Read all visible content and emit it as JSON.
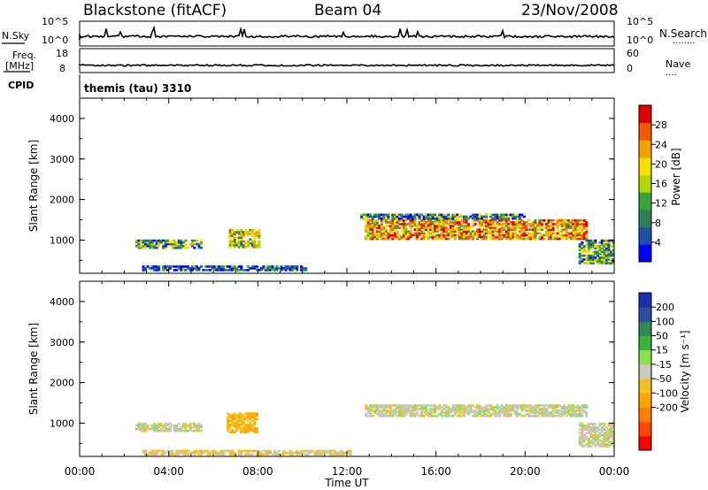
{
  "header": {
    "station": "Blackstone (fitACF)",
    "beam": "Beam 04",
    "date": "23/Nov/2008"
  },
  "top_panels": {
    "nsky_label": "N.Sky",
    "nsearch_label": "N.Search",
    "nsearch_dots": "........",
    "noise_ticks": [
      "10^5",
      "10^0"
    ],
    "freq_label_1": "Freq.",
    "freq_label_2": "[MHz]",
    "freq_ticks": [
      "18",
      "8"
    ],
    "nave_label": "Nave",
    "nave_dots": "....",
    "nave_ticks": [
      "60",
      "0"
    ],
    "cpid_label": "CPID",
    "cpid_value": "themis (tau) 3310"
  },
  "colors": {
    "power_scale": [
      "#0000ff",
      "#1f4fa8",
      "#2f7f5a",
      "#37a33a",
      "#b7d500",
      "#f5e000",
      "#f5a000",
      "#f05a00",
      "#e00000"
    ],
    "velocity_scale": [
      "#ff0000",
      "#ff4500",
      "#ff8000",
      "#ffa500",
      "#f0c420",
      "#c8c8be",
      "#8be04e",
      "#3bb33b",
      "#2e8b57",
      "#2e4fa0",
      "#1c2fb0"
    ]
  },
  "chart_data": [
    {
      "type": "heatmap",
      "quantity": "power",
      "ylabel": "Slant Range [km]",
      "ylim": [
        180,
        4500
      ],
      "yticks": [
        "1000",
        "2000",
        "3000",
        "4000"
      ],
      "xlim_hours": [
        0,
        24
      ],
      "colorbar": {
        "label": "Power [dB]",
        "ticks": [
          "4",
          "8",
          "12",
          "16",
          "20",
          "24",
          "28"
        ],
        "range": [
          0,
          32
        ]
      },
      "regions": [
        {
          "t": [
            2.5,
            5.5
          ],
          "r": [
            780,
            1000
          ],
          "value": 12
        },
        {
          "t": [
            6.7,
            8.1
          ],
          "r": [
            800,
            1260
          ],
          "value": 16
        },
        {
          "t": [
            12.8,
            22.8
          ],
          "r": [
            1000,
            1500
          ],
          "value": 22
        },
        {
          "t": [
            12.6,
            20.0
          ],
          "r": [
            1500,
            1640
          ],
          "value": 10
        },
        {
          "t": [
            2.8,
            10.2
          ],
          "r": [
            230,
            360
          ],
          "value": 6
        },
        {
          "t": [
            22.4,
            24.0
          ],
          "r": [
            400,
            1000
          ],
          "value": 12
        }
      ]
    },
    {
      "type": "heatmap",
      "quantity": "velocity",
      "xlabel": "Time UT",
      "ylabel": "Slant Range [km]",
      "ylim": [
        180,
        4500
      ],
      "yticks": [
        "1000",
        "2000",
        "3000",
        "4000"
      ],
      "xticks": [
        "00:00",
        "04:00",
        "08:00",
        "12:00",
        "16:00",
        "20:00",
        "00:00"
      ],
      "xlim_hours": [
        0,
        24
      ],
      "colorbar": {
        "label": "Velocity [m s⁻¹]",
        "ticks": [
          "200",
          "100",
          "50",
          "15",
          "-15",
          "-50",
          "-100",
          "-200"
        ],
        "range": [
          -250,
          250
        ]
      },
      "regions": [
        {
          "t": [
            2.5,
            5.5
          ],
          "r": [
            780,
            1000
          ],
          "value": 0
        },
        {
          "t": [
            6.6,
            8.0
          ],
          "r": [
            750,
            1250
          ],
          "value": -70
        },
        {
          "t": [
            12.8,
            22.8
          ],
          "r": [
            1150,
            1450
          ],
          "value": 0
        },
        {
          "t": [
            2.8,
            12.2
          ],
          "r": [
            200,
            330
          ],
          "value": -30
        },
        {
          "t": [
            22.4,
            24.0
          ],
          "r": [
            400,
            1000
          ],
          "value": 0
        }
      ]
    }
  ]
}
